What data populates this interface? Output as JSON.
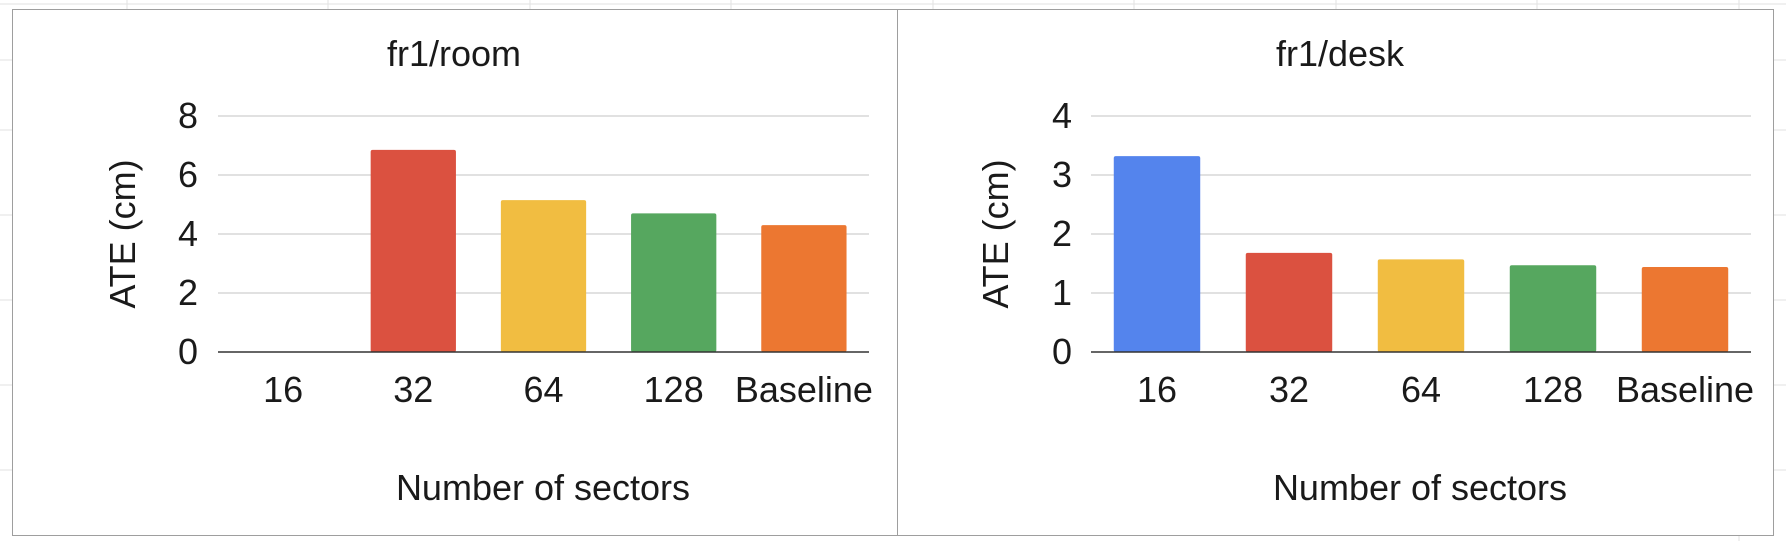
{
  "chart_data": [
    {
      "type": "bar",
      "title": "fr1/room",
      "xlabel": "Number of sectors",
      "ylabel": "ATE (cm)",
      "categories": [
        "16",
        "32",
        "64",
        "128",
        "Baseline"
      ],
      "values": [
        0,
        6.85,
        5.15,
        4.7,
        4.3
      ],
      "colors": [
        "#5484ed",
        "#db5140",
        "#f1bd41",
        "#56a75f",
        "#ec7731"
      ],
      "ylim": [
        0,
        8
      ],
      "yticks": [
        "0",
        "2",
        "4",
        "6",
        "8"
      ],
      "grid": true,
      "legend": "none"
    },
    {
      "type": "bar",
      "title": "fr1/desk",
      "xlabel": "Number of sectors",
      "ylabel": "ATE (cm)",
      "categories": [
        "16",
        "32",
        "64",
        "128",
        "Baseline"
      ],
      "values": [
        3.32,
        1.68,
        1.57,
        1.47,
        1.44
      ],
      "colors": [
        "#5484ed",
        "#db5140",
        "#f1bd41",
        "#56a75f",
        "#ec7731"
      ],
      "ylim": [
        0,
        4
      ],
      "yticks": [
        "0",
        "1",
        "2",
        "3",
        "4"
      ],
      "grid": true,
      "legend": "none"
    }
  ]
}
